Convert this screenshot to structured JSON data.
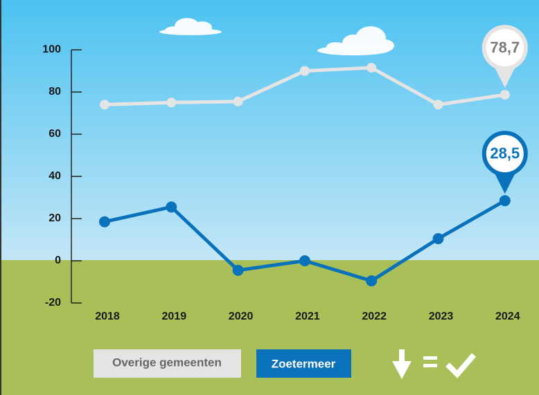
{
  "chart_data": {
    "type": "line",
    "categories": [
      "2018",
      "2019",
      "2020",
      "2021",
      "2022",
      "2023",
      "2024"
    ],
    "series": [
      {
        "name": "Overige gemeenten",
        "color": "#e4e4e4",
        "values": [
          74,
          75,
          75.5,
          90,
          91.5,
          74,
          78.7
        ],
        "value_labels": [
          null,
          null,
          null,
          null,
          null,
          null,
          "78,7"
        ]
      },
      {
        "name": "Zoetermeer",
        "color": "#0a72ba",
        "values": [
          18.5,
          25.5,
          -4.5,
          0,
          -9.5,
          10.5,
          28.5
        ],
        "value_labels": [
          null,
          null,
          null,
          null,
          null,
          null,
          "28,5"
        ]
      }
    ],
    "ylim": [
      -20,
      100
    ],
    "yticks": [
      -20,
      0,
      20,
      40,
      60,
      80,
      100
    ]
  }
}
